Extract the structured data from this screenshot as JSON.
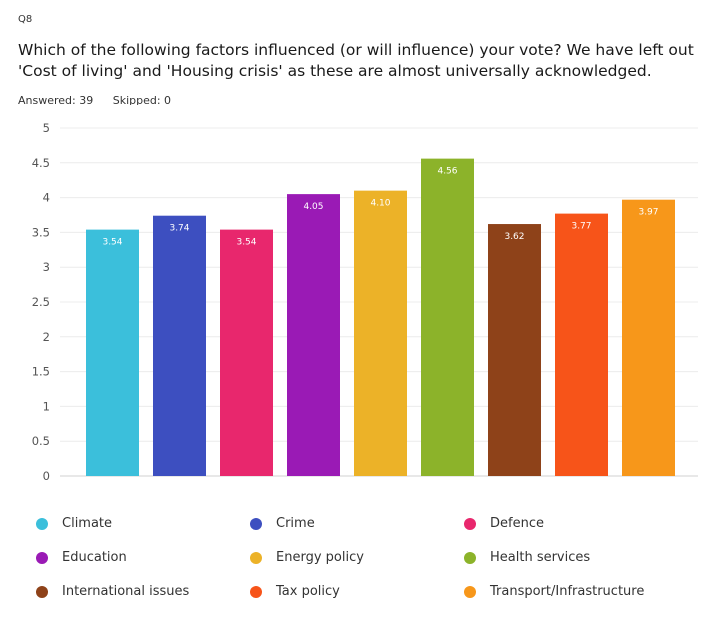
{
  "header": {
    "qnum": "Q8",
    "question": "Which of the following factors influenced (or will influence) your vote? We have left out 'Cost of living' and 'Housing crisis' as these are almost universally acknowledged.",
    "answered": "Answered: 39",
    "skipped": "Skipped: 0"
  },
  "chart_data": {
    "type": "bar",
    "categories": [
      "Climate",
      "Crime",
      "Defence",
      "Education",
      "Energy policy",
      "Health services",
      "International issues",
      "Tax policy",
      "Transport/Infrastructure"
    ],
    "values": [
      3.54,
      3.74,
      3.54,
      4.05,
      4.1,
      4.56,
      3.62,
      3.77,
      3.97
    ],
    "value_labels": [
      "3.54",
      "3.74",
      "3.54",
      "4.05",
      "4.10",
      "4.56",
      "3.62",
      "3.77",
      "3.97"
    ],
    "colors": [
      "#3bbfdb",
      "#3d4fc0",
      "#e8276d",
      "#9a1ab5",
      "#ecb228",
      "#8cb32a",
      "#8e4219",
      "#f75419",
      "#f7971a"
    ],
    "ylim": [
      0,
      5
    ],
    "yticks": [
      "0",
      "0.5",
      "1",
      "1.5",
      "2",
      "2.5",
      "3",
      "3.5",
      "4",
      "4.5",
      "5"
    ],
    "grid": true,
    "legend": "bottom",
    "legend_labels": [
      "Climate",
      "Crime",
      "Defence",
      "Education",
      "Energy policy",
      "Health services",
      "International issues",
      "Tax policy",
      "Transport/Infrastructure"
    ]
  }
}
